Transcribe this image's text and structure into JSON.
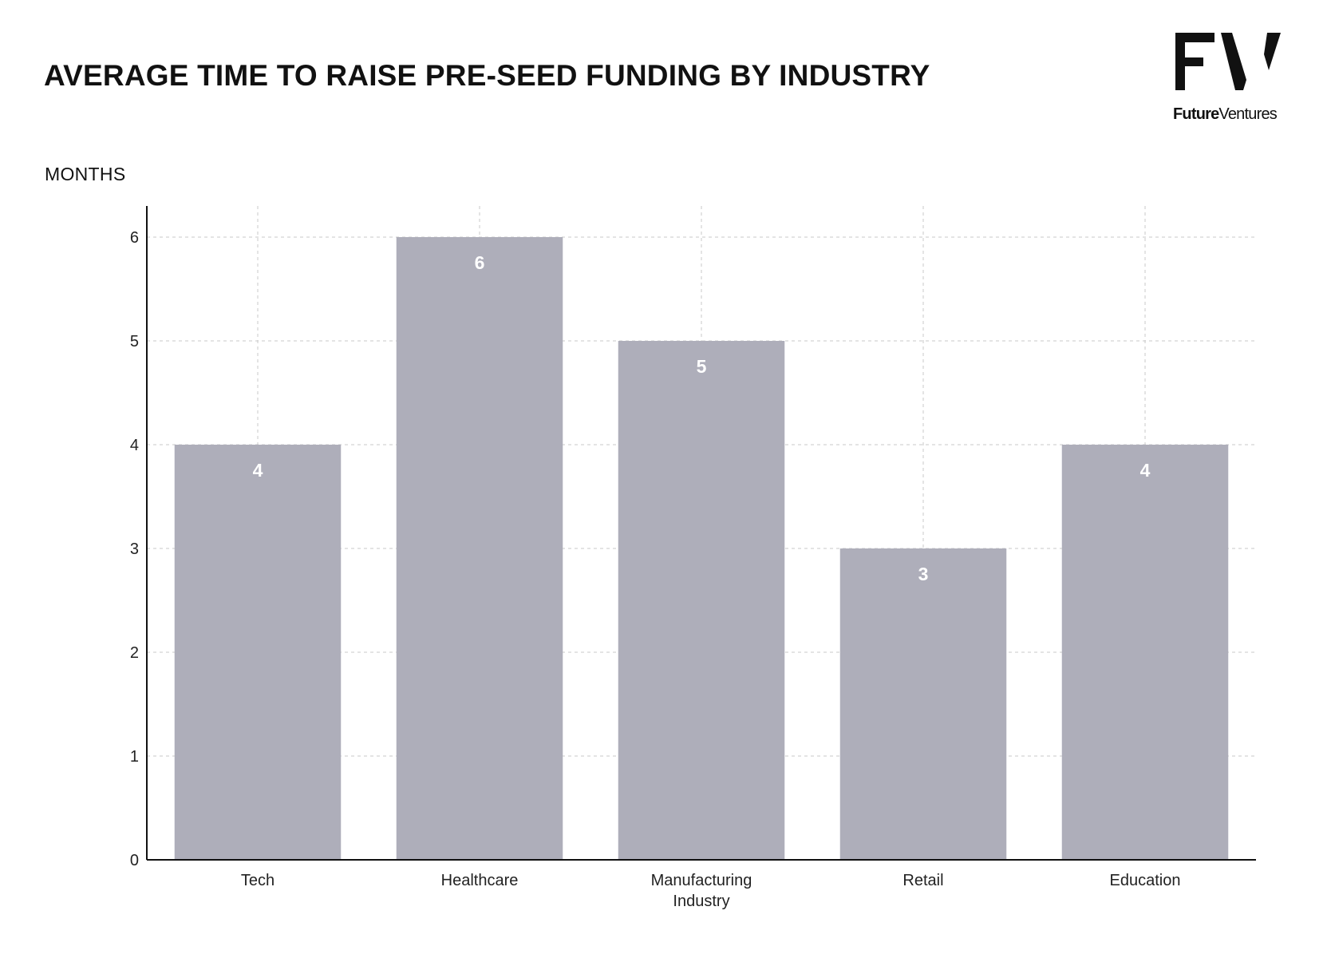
{
  "title": "AVERAGE TIME TO RAISE PRE-SEED FUNDING BY INDUSTRY",
  "logo": {
    "mark": "FV",
    "text_bold": "Future",
    "text_regular": "Ventures"
  },
  "colors": {
    "bar": "#aeaeba",
    "axis": "#111111",
    "grid": "#c8c8c8",
    "data_label": "#ffffff"
  },
  "chart_data": {
    "type": "bar",
    "title": "AVERAGE TIME TO RAISE PRE-SEED FUNDING BY INDUSTRY",
    "xlabel": "",
    "ylabel": "MONTHS",
    "categories": [
      [
        "Tech"
      ],
      [
        "Healthcare"
      ],
      [
        "Manufacturing",
        "Industry"
      ],
      [
        "Retail"
      ],
      [
        "Education"
      ]
    ],
    "values": [
      4,
      6,
      5,
      3,
      4
    ],
    "data_labels": [
      "4",
      "6",
      "5",
      "3",
      "4"
    ],
    "ylim": [
      0,
      6.3
    ],
    "yticks": [
      0,
      1,
      2,
      3,
      4,
      5,
      6
    ],
    "grid": true,
    "legend": "none"
  }
}
